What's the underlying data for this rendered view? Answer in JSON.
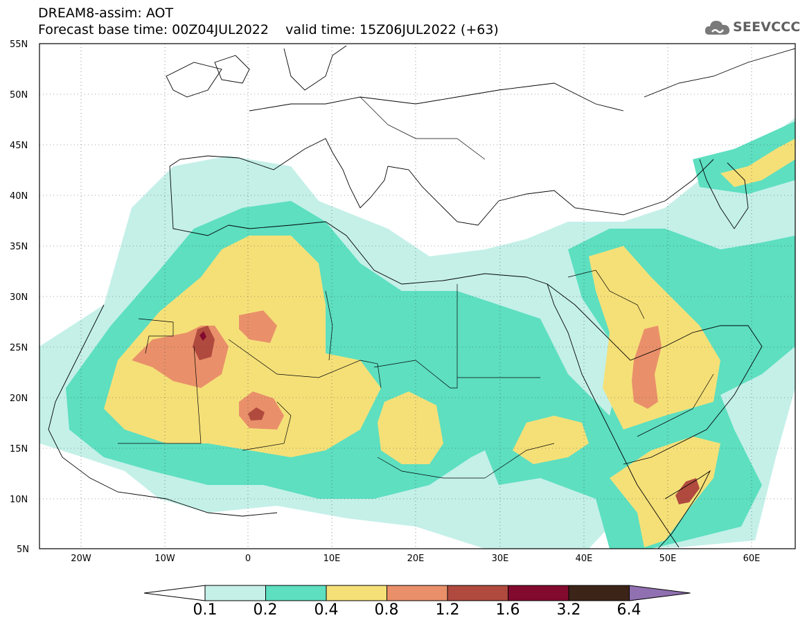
{
  "header": {
    "title": "DREAM8-assim: AOT",
    "base_time_label": "Forecast base time: 00Z04JUL2022",
    "valid_time_label": "valid time: 15Z06JUL2022 (+63)"
  },
  "logo": {
    "text": "SEEVCCC",
    "icon": "cloud-icon"
  },
  "map": {
    "region": "North Africa, Europe and Middle East",
    "lat_labels": [
      "55N",
      "50N",
      "45N",
      "40N",
      "35N",
      "30N",
      "25N",
      "20N",
      "15N",
      "10N",
      "5N"
    ],
    "lon_labels": [
      "20W",
      "10W",
      "0",
      "10E",
      "20E",
      "30E",
      "40E",
      "50E",
      "60E"
    ],
    "lon_range": [
      -25,
      65
    ],
    "lat_range": [
      5,
      55
    ],
    "grid": "dotted"
  },
  "colorbar": {
    "labels": [
      "0.1",
      "0.2",
      "0.4",
      "0.8",
      "1.2",
      "1.6",
      "3.2",
      "6.4"
    ],
    "colors": [
      "#ffffff",
      "#c4f0e8",
      "#5ddfc0",
      "#f5e078",
      "#e9906a",
      "#b04a3e",
      "#820a2e",
      "#3d2418",
      "#9070b0"
    ]
  }
}
